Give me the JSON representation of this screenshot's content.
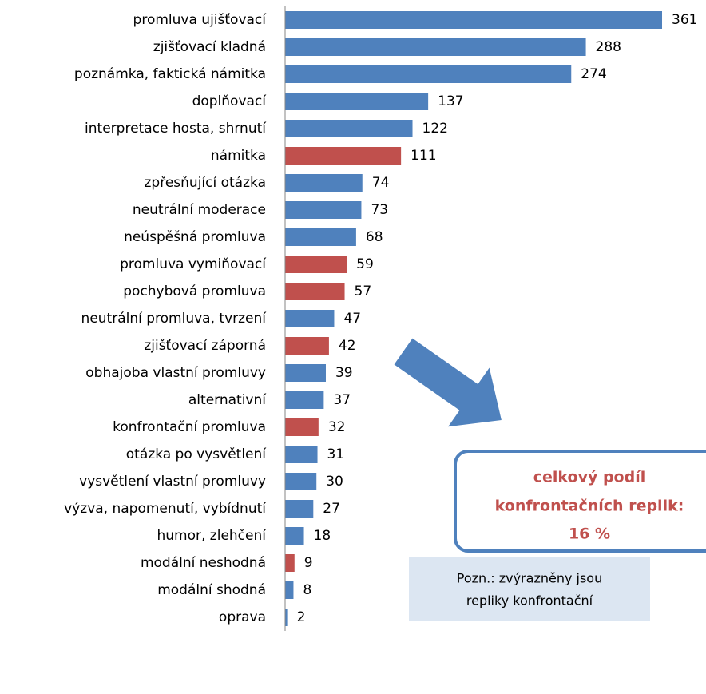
{
  "chart_data": {
    "type": "bar",
    "orientation": "horizontal",
    "categories": [
      "promluva ujišťovací",
      "zjišťovací kladná",
      "poznámka, faktická námitka",
      "doplňovací",
      "interpretace hosta, shrnutí",
      "námitka",
      "zpřesňující otázka",
      "neutrální moderace",
      "neúspěšná promluva",
      "promluva vymiňovací",
      "pochybová promluva",
      "neutrální promluva, tvrzení",
      "zjišťovací záporná",
      "obhajoba vlastní promluvy",
      "alternativní",
      "konfrontační promluva",
      "otázka po vysvětlení",
      "vysvětlení vlastní promluvy",
      "výzva, napomenutí, vybídnutí",
      "humor, zlehčení",
      "modální neshodná",
      "modální shodná",
      "oprava"
    ],
    "values": [
      361,
      288,
      274,
      137,
      122,
      111,
      74,
      73,
      68,
      59,
      57,
      47,
      42,
      39,
      37,
      32,
      31,
      30,
      27,
      18,
      9,
      8,
      2
    ],
    "colors": [
      "#4f81bd",
      "#4f81bd",
      "#4f81bd",
      "#4f81bd",
      "#4f81bd",
      "#c0504d",
      "#4f81bd",
      "#4f81bd",
      "#4f81bd",
      "#c0504d",
      "#c0504d",
      "#4f81bd",
      "#c0504d",
      "#4f81bd",
      "#4f81bd",
      "#c0504d",
      "#4f81bd",
      "#4f81bd",
      "#4f81bd",
      "#4f81bd",
      "#c0504d",
      "#4f81bd",
      "#4f81bd"
    ],
    "xlim": [
      0,
      400
    ],
    "callout": [
      "celkový podíl",
      "konfrontačních replik:",
      "16 %"
    ],
    "note": [
      "Pozn.: zvýrazněny jsou",
      "repliky konfrontační"
    ]
  }
}
